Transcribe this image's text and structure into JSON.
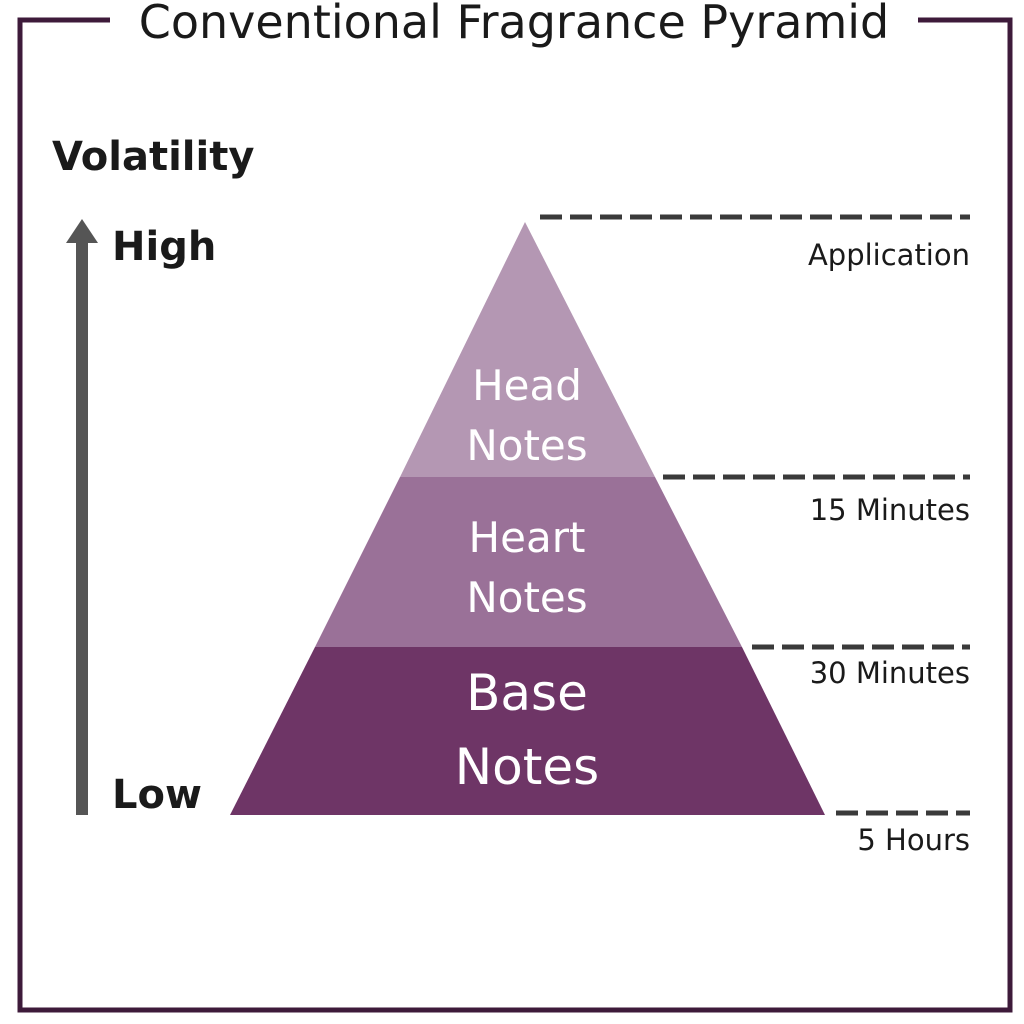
{
  "title": "Conventional Fragrance Pyramid",
  "axis": {
    "label": "Volatility",
    "high": "High",
    "low": "Low"
  },
  "layers": [
    {
      "line1": "Head",
      "line2": "Notes",
      "color": "#b497b3"
    },
    {
      "line1": "Heart",
      "line2": "Notes",
      "color": "#9a7198"
    },
    {
      "line1": "Base",
      "line2": "Notes",
      "color": "#6e3566"
    }
  ],
  "times": [
    "Application",
    "15 Minutes",
    "30 Minutes",
    "5 Hours"
  ],
  "colors": {
    "frame": "#3d1a3a",
    "arrow": "#555555",
    "dash": "#3a3a3a",
    "text": "#1a1a1a"
  }
}
